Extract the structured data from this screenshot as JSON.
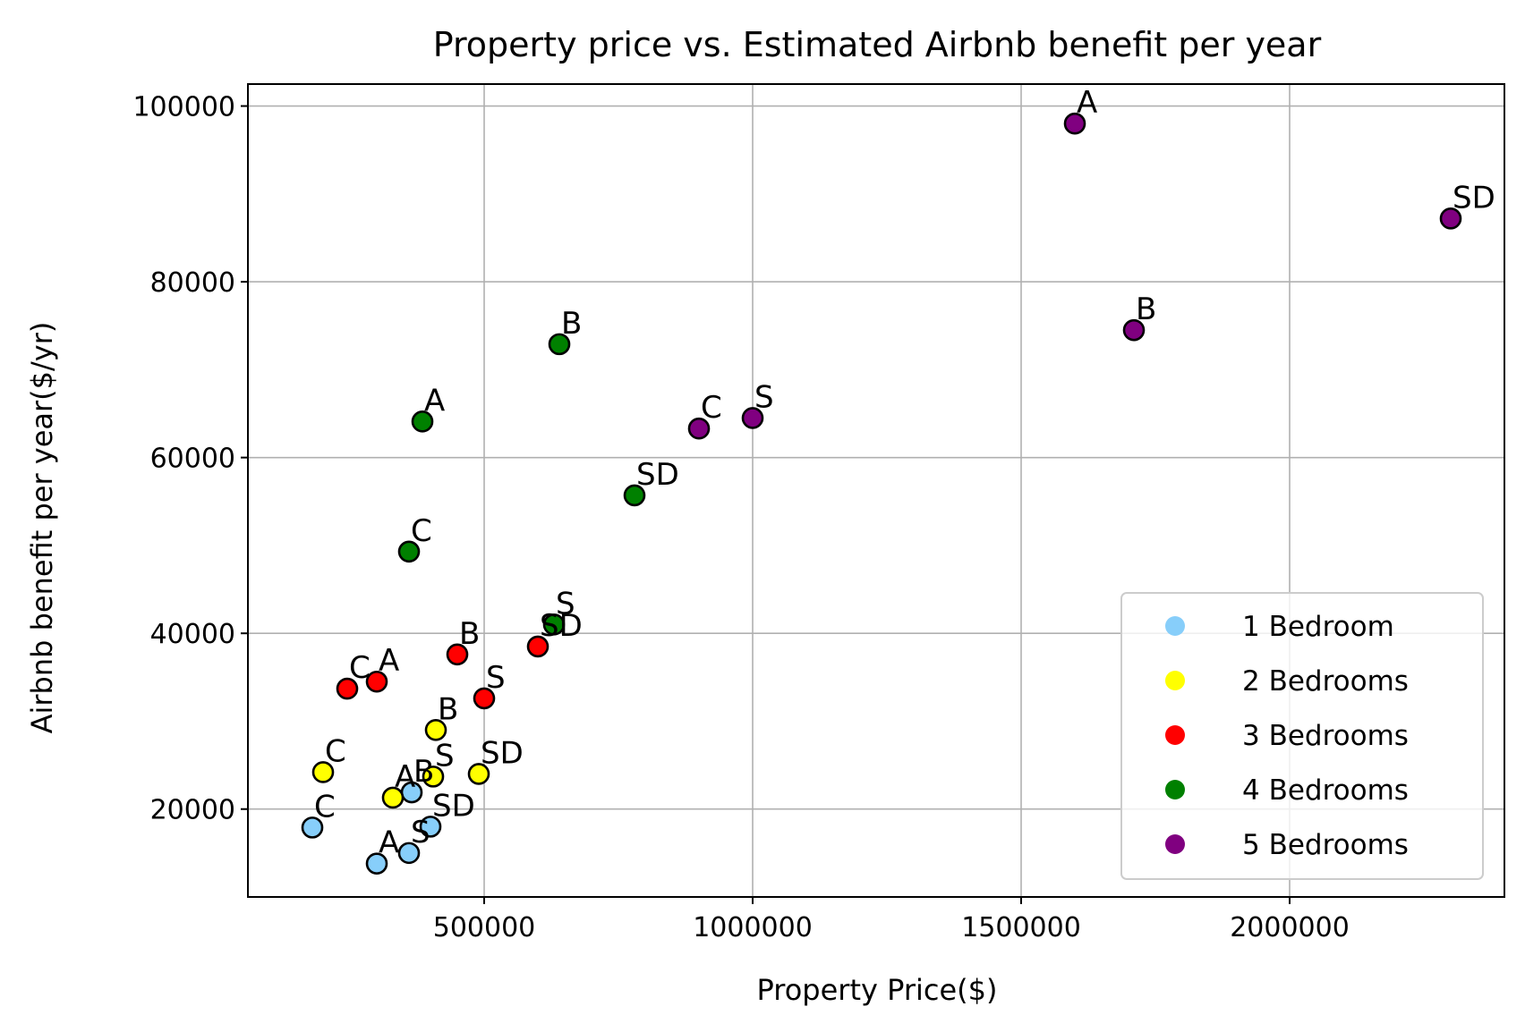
{
  "chart_data": {
    "type": "scatter",
    "title": "Property price vs. Estimated Airbnb benefit per year",
    "xlabel": "Property Price($)",
    "ylabel": "Airbnb benefit per year($/yr)",
    "xlim": [
      60000,
      2400000
    ],
    "ylim": [
      10000,
      102500
    ],
    "xticks": [
      500000,
      1000000,
      1500000,
      2000000
    ],
    "yticks": [
      20000,
      40000,
      60000,
      80000,
      100000
    ],
    "grid": true,
    "legend_position": "lower-right",
    "series": [
      {
        "name": "1 Bedroom",
        "color": "#87cefa",
        "points": [
          {
            "label": "C",
            "x": 180000,
            "y": 17900
          },
          {
            "label": "A",
            "x": 300000,
            "y": 13800
          },
          {
            "label": "S",
            "x": 360000,
            "y": 15000
          },
          {
            "label": "B",
            "x": 365000,
            "y": 21900
          },
          {
            "label": "SD",
            "x": 400000,
            "y": 18000
          }
        ]
      },
      {
        "name": "2 Bedrooms",
        "color": "#ffff00",
        "points": [
          {
            "label": "C",
            "x": 200000,
            "y": 24200
          },
          {
            "label": "A",
            "x": 330000,
            "y": 21300
          },
          {
            "label": "S",
            "x": 405000,
            "y": 23700
          },
          {
            "label": "B",
            "x": 410000,
            "y": 29000
          },
          {
            "label": "SD",
            "x": 490000,
            "y": 24000
          }
        ]
      },
      {
        "name": "3 Bedrooms",
        "color": "#ff0000",
        "points": [
          {
            "label": "C",
            "x": 245000,
            "y": 33700
          },
          {
            "label": "A",
            "x": 300000,
            "y": 34500
          },
          {
            "label": "B",
            "x": 450000,
            "y": 37600
          },
          {
            "label": "S",
            "x": 500000,
            "y": 32600
          },
          {
            "label": "SD",
            "x": 600000,
            "y": 38500
          }
        ]
      },
      {
        "name": "4 Bedrooms",
        "color": "#008000",
        "points": [
          {
            "label": "A",
            "x": 385000,
            "y": 64100
          },
          {
            "label": "C",
            "x": 360000,
            "y": 49300
          },
          {
            "label": "B",
            "x": 640000,
            "y": 72900
          },
          {
            "label": "SD",
            "x": 780000,
            "y": 55700
          },
          {
            "label": "S",
            "x": 630000,
            "y": 41000
          }
        ]
      },
      {
        "name": "5 Bedrooms",
        "color": "#800080",
        "points": [
          {
            "label": "A",
            "x": 1600000,
            "y": 98000
          },
          {
            "label": "SD",
            "x": 2300000,
            "y": 87200
          },
          {
            "label": "B",
            "x": 1710000,
            "y": 74500
          },
          {
            "label": "C",
            "x": 900000,
            "y": 63300
          },
          {
            "label": "S",
            "x": 1000000,
            "y": 64500
          }
        ]
      }
    ]
  }
}
